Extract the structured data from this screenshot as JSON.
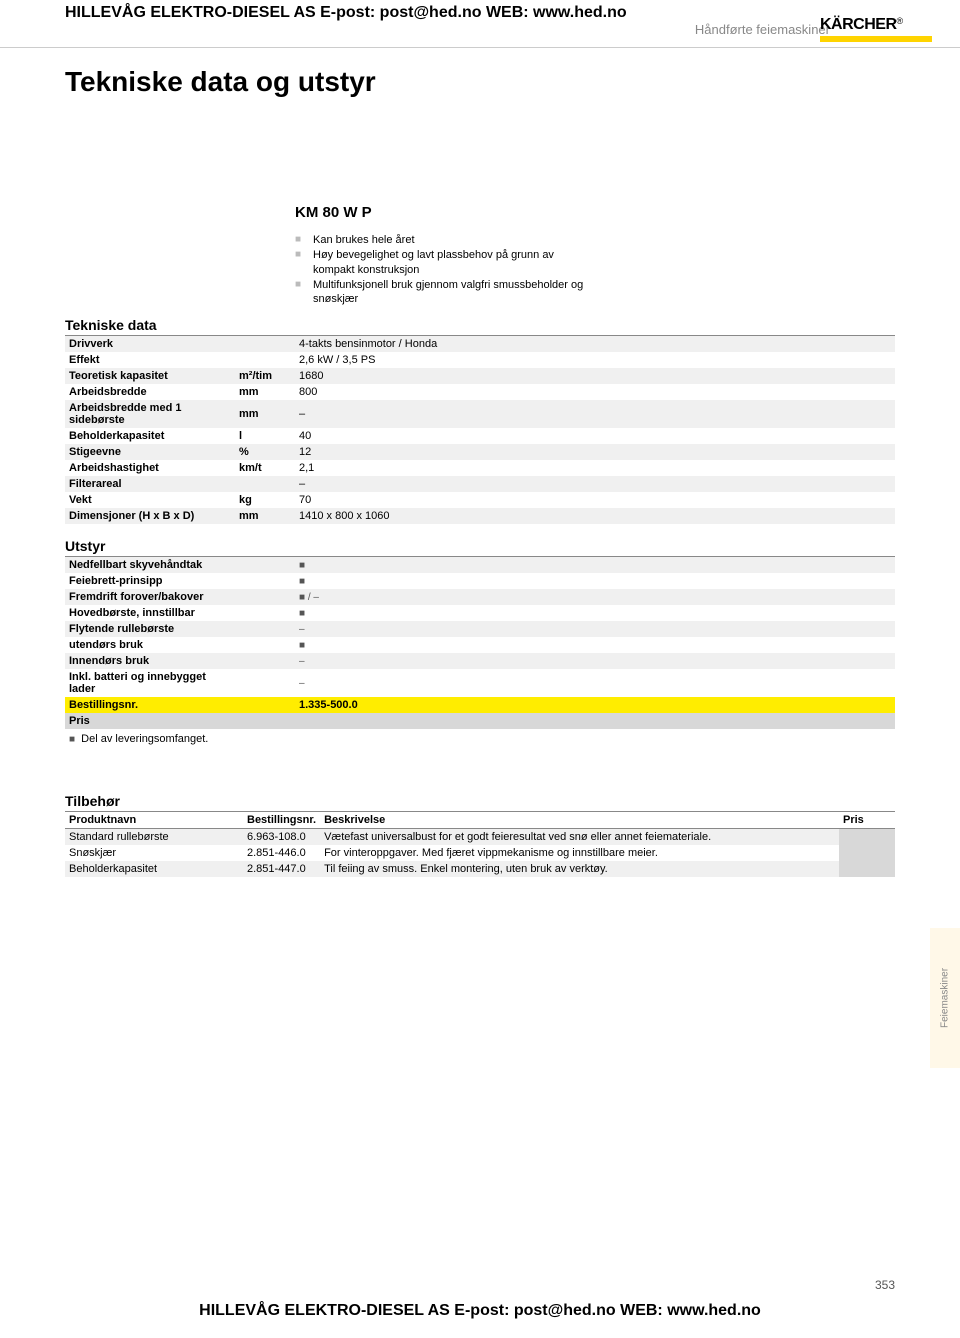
{
  "header": {
    "contact_line": "HILLEVÅG ELEKTRO-DIESEL AS   E-post: post@hed.no   WEB: www.hed.no",
    "subcategory": "Håndførte feiemaskiner",
    "logo_text": "KÄRCHER",
    "logo_bar_color": "#ffd400"
  },
  "page_title": "Tekniske data og utstyr",
  "product_name": "KM 80 W P",
  "bullets": [
    "Kan brukes hele året",
    "Høy bevegelighet og lavt plassbehov på grunn av kompakt konstruksjon",
    "Multifunksjonell bruk gjennom valgfri smussbeholder og snøskjær"
  ],
  "tech_section_title": "Tekniske data",
  "tech_rows": [
    {
      "label": "Drivverk",
      "unit": "",
      "value": "4-takts bensinmotor / Honda"
    },
    {
      "label": "Effekt",
      "unit": "",
      "value": "2,6 kW / 3,5 PS"
    },
    {
      "label": "Teoretisk kapasitet",
      "unit": "m²/tim",
      "value": "1680"
    },
    {
      "label": "Arbeidsbredde",
      "unit": "mm",
      "value": "800"
    },
    {
      "label": "Arbeidsbredde med 1 sidebørste",
      "unit": "mm",
      "value": "–"
    },
    {
      "label": "Beholderkapasitet",
      "unit": "l",
      "value": "40"
    },
    {
      "label": "Stigeevne",
      "unit": "%",
      "value": "12"
    },
    {
      "label": "Arbeidshastighet",
      "unit": "km/t",
      "value": "2,1"
    },
    {
      "label": "Filterareal",
      "unit": "",
      "value": "–"
    },
    {
      "label": "Vekt",
      "unit": "kg",
      "value": "70"
    },
    {
      "label": "Dimensjoner (H x B x D)",
      "unit": "mm",
      "value": "1410 x 800 x 1060"
    }
  ],
  "equip_section_title": "Utstyr",
  "equip_rows": [
    {
      "label": "Nedfellbart skyvehåndtak",
      "value": "■"
    },
    {
      "label": "Feiebrett-prinsipp",
      "value": "■"
    },
    {
      "label": "Fremdrift forover/bakover",
      "value": "■ / –"
    },
    {
      "label": "Hovedbørste, innstillbar",
      "value": "■"
    },
    {
      "label": "Flytende rullebørste",
      "value": "–"
    },
    {
      "label": "utendørs bruk",
      "value": "■"
    },
    {
      "label": "Innendørs bruk",
      "value": "–"
    },
    {
      "label": "Inkl. batteri og innebygget lader",
      "value": "–"
    }
  ],
  "order_row": {
    "label": "Bestillingsnr.",
    "value": "1.335-500.0"
  },
  "price_row": {
    "label": "Pris",
    "value": ""
  },
  "legend_note": "Del av leveringsomfanget.",
  "accessories_section_title": "Tilbehør",
  "accessories_headers": {
    "name": "Produktnavn",
    "order": "Bestillingsnr.",
    "desc": "Beskrivelse",
    "price": "Pris"
  },
  "accessories_rows": [
    {
      "name": "Standard rullebørste",
      "order": "6.963-108.0",
      "desc": "Vætefast universalbust for et godt feieresultat ved snø eller annet feiemateriale.",
      "price": ""
    },
    {
      "name": "Snøskjær",
      "order": "2.851-446.0",
      "desc": "For vinteroppgaver. Med fjæret vippmekanisme og innstillbare meier.",
      "price": ""
    },
    {
      "name": "Beholderkapasitet",
      "order": "2.851-447.0",
      "desc": "Til feiing av smuss. Enkel montering, uten bruk av verktøy.",
      "price": ""
    }
  ],
  "side_tab": "Feiemaskiner",
  "page_number": "353",
  "footer_contact": "HILLEVÅG ELEKTRO-DIESEL AS   E-post: post@hed.no   WEB: www.hed.no",
  "colors": {
    "highlight_row": "#ffed00",
    "price_row_bg": "#d8d8d8",
    "stripe_bg": "#f0f0f0",
    "bullet_marker": "#bbbbbb",
    "side_tab_bg": "#fff8e8"
  }
}
